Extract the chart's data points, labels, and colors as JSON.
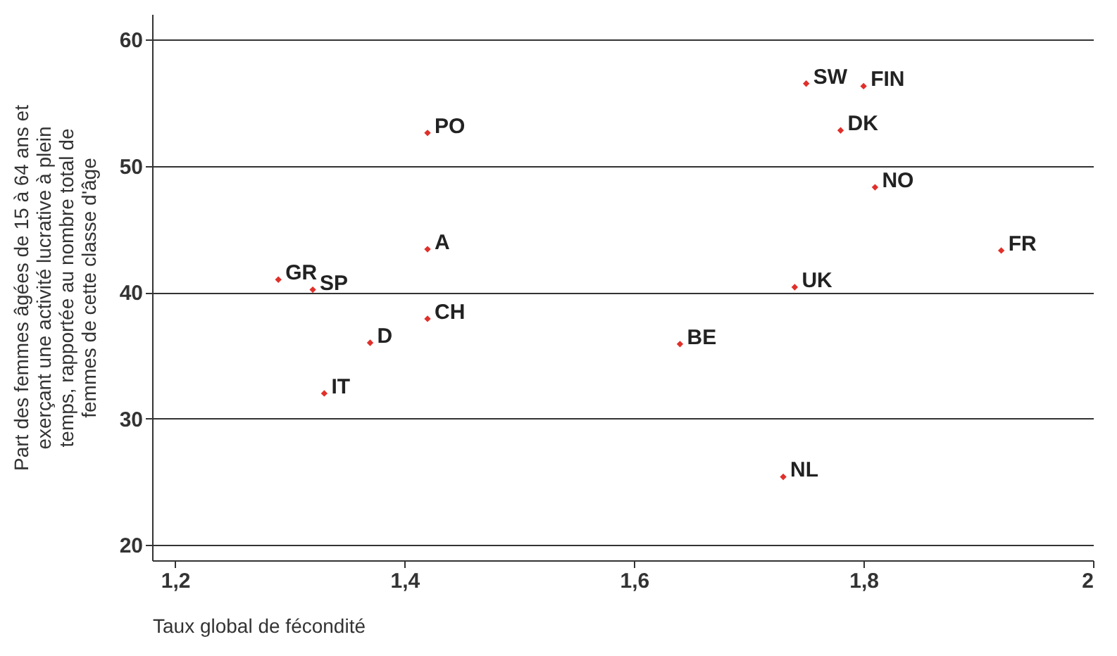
{
  "chart_data": {
    "type": "scatter",
    "xlabel": "Taux global de fécondité",
    "ylabel": "Part des femmes âgées de 15 à 64 ans et exerçant une activité lucrative à plein temps, rapportée au nombre total de femmes de cette classe d'âge",
    "x": [
      1.29,
      1.32,
      1.42,
      1.42,
      1.42,
      1.37,
      1.33,
      1.64,
      1.73,
      1.74,
      1.75,
      1.8,
      1.78,
      1.81,
      1.92
    ],
    "series": [
      {
        "color": "#e0302a",
        "values": [
          41.0,
          40.2,
          43.4,
          52.6,
          37.9,
          36.0,
          32.0,
          35.9,
          25.4,
          40.4,
          56.5,
          56.3,
          52.8,
          48.3,
          43.3
        ]
      }
    ],
    "annotations": [
      {
        "text": "GR",
        "x": 1.29,
        "y": 41.0
      },
      {
        "text": "SP",
        "x": 1.32,
        "y": 40.2
      },
      {
        "text": "A",
        "x": 1.42,
        "y": 43.4
      },
      {
        "text": "PO",
        "x": 1.42,
        "y": 52.6
      },
      {
        "text": "CH",
        "x": 1.42,
        "y": 37.9
      },
      {
        "text": "D",
        "x": 1.37,
        "y": 36.0
      },
      {
        "text": "IT",
        "x": 1.33,
        "y": 32.0
      },
      {
        "text": "BE",
        "x": 1.64,
        "y": 35.9
      },
      {
        "text": "NL",
        "x": 1.73,
        "y": 25.4
      },
      {
        "text": "UK",
        "x": 1.74,
        "y": 40.4
      },
      {
        "text": "SW",
        "x": 1.75,
        "y": 56.5
      },
      {
        "text": "FIN",
        "x": 1.8,
        "y": 56.3
      },
      {
        "text": "DK",
        "x": 1.78,
        "y": 52.8
      },
      {
        "text": "NO",
        "x": 1.81,
        "y": 48.3
      },
      {
        "text": "FR",
        "x": 1.92,
        "y": 43.3
      }
    ],
    "xlim": [
      1.18,
      2.0
    ],
    "ylim": [
      18.8,
      62
    ],
    "xticks": [
      {
        "value": 1.2,
        "label": "1,2"
      },
      {
        "value": 1.4,
        "label": "1,4"
      },
      {
        "value": 1.6,
        "label": "1,6"
      },
      {
        "value": 1.8,
        "label": "1,8"
      },
      {
        "value": 2,
        "label": "2"
      }
    ],
    "yticks": [
      20,
      30,
      40,
      50,
      60
    ],
    "grid": "y",
    "marker": "diamond"
  }
}
